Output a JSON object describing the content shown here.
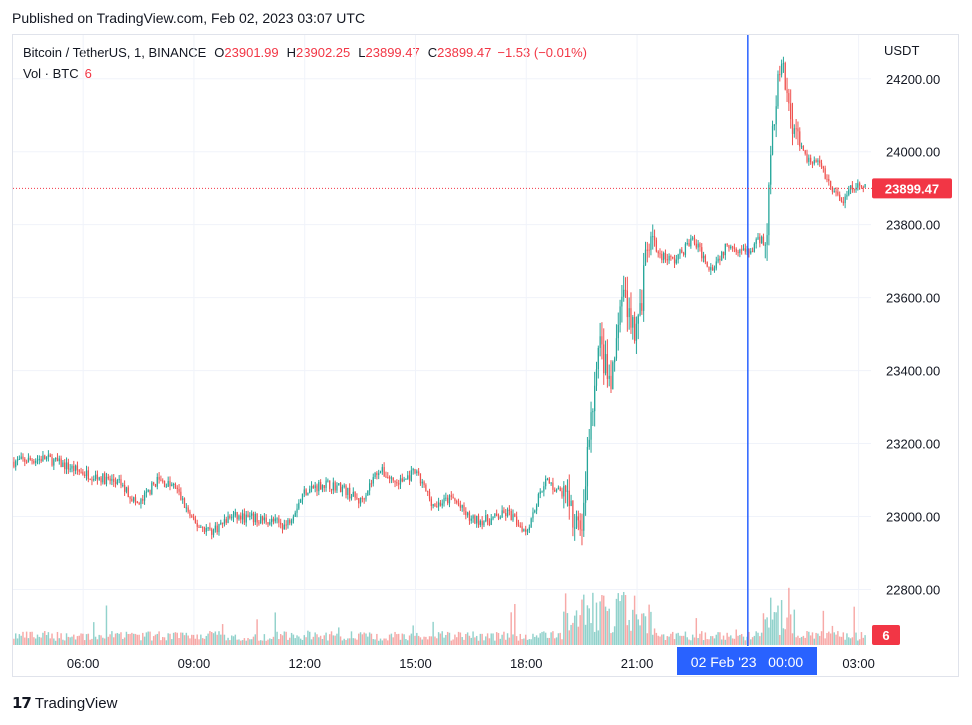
{
  "published": "Published on TradingView.com, Feb 02, 2023 03:07 UTC",
  "legend": {
    "symbol": "Bitcoin / TetherUS, 1, BINANCE",
    "open_label": "O",
    "open": "23901.99",
    "high_label": "H",
    "high": "23902.25",
    "low_label": "L",
    "low": "23899.47",
    "close_label": "C",
    "close": "23899.47",
    "change": "−1.53 (−0.01%)",
    "volume_label": "Vol · BTC",
    "volume": "6"
  },
  "currency": "USDT",
  "price_badge": "23899.47",
  "volume_badge": "6",
  "crosshair_label": "02 Feb '23   00:00",
  "footer": {
    "logo_mark": "17",
    "logo_text": "TradingView"
  },
  "colors": {
    "up": "#26a69a",
    "down": "#ef5350",
    "crosshair": "#2962ff",
    "price_line": "#f23645"
  },
  "chart_data": {
    "type": "candlestick",
    "symbol": "BTCUSDT",
    "interval": "1m",
    "y_axis_ticks": [
      "22800.00",
      "23000.00",
      "23200.00",
      "23400.00",
      "23600.00",
      "23800.00",
      "24000.00",
      "24200.00"
    ],
    "x_axis_ticks": [
      "06:00",
      "09:00",
      "12:00",
      "15:00",
      "18:00",
      "21:00",
      "03:00"
    ],
    "ylim": [
      22645,
      24320
    ],
    "xlim_hours": [
      4.1,
      27.2
    ],
    "last_price": 23899.47,
    "price_path": [
      {
        "t": 4.1,
        "p": 23150
      },
      {
        "t": 5.0,
        "p": 23160
      },
      {
        "t": 6.0,
        "p": 23120
      },
      {
        "t": 7.0,
        "p": 23090
      },
      {
        "t": 7.5,
        "p": 23030
      },
      {
        "t": 8.0,
        "p": 23100
      },
      {
        "t": 8.5,
        "p": 23080
      },
      {
        "t": 9.0,
        "p": 22980
      },
      {
        "t": 9.5,
        "p": 22960
      },
      {
        "t": 10.0,
        "p": 23000
      },
      {
        "t": 11.0,
        "p": 22990
      },
      {
        "t": 11.5,
        "p": 22975
      },
      {
        "t": 12.0,
        "p": 23070
      },
      {
        "t": 12.5,
        "p": 23090
      },
      {
        "t": 13.0,
        "p": 23080
      },
      {
        "t": 13.5,
        "p": 23040
      },
      {
        "t": 14.0,
        "p": 23130
      },
      {
        "t": 14.5,
        "p": 23090
      },
      {
        "t": 15.0,
        "p": 23120
      },
      {
        "t": 15.5,
        "p": 23030
      },
      {
        "t": 16.0,
        "p": 23050
      },
      {
        "t": 16.5,
        "p": 22990
      },
      {
        "t": 17.0,
        "p": 22990
      },
      {
        "t": 17.5,
        "p": 23010
      },
      {
        "t": 18.0,
        "p": 22960
      },
      {
        "t": 18.5,
        "p": 23100
      },
      {
        "t": 19.0,
        "p": 23060
      },
      {
        "t": 19.3,
        "p": 22980
      },
      {
        "t": 19.5,
        "p": 22950
      },
      {
        "t": 19.7,
        "p": 23220
      },
      {
        "t": 20.0,
        "p": 23470
      },
      {
        "t": 20.3,
        "p": 23350
      },
      {
        "t": 20.6,
        "p": 23620
      },
      {
        "t": 21.0,
        "p": 23500
      },
      {
        "t": 21.3,
        "p": 23750
      },
      {
        "t": 21.6,
        "p": 23720
      },
      {
        "t": 22.0,
        "p": 23700
      },
      {
        "t": 22.5,
        "p": 23760
      },
      {
        "t": 23.0,
        "p": 23680
      },
      {
        "t": 23.5,
        "p": 23750
      },
      {
        "t": 24.0,
        "p": 23720
      },
      {
        "t": 24.5,
        "p": 23780
      },
      {
        "t": 24.7,
        "p": 24100
      },
      {
        "t": 24.9,
        "p": 24230
      },
      {
        "t": 25.2,
        "p": 24090
      },
      {
        "t": 25.5,
        "p": 23990
      },
      {
        "t": 26.0,
        "p": 23960
      },
      {
        "t": 26.3,
        "p": 23890
      },
      {
        "t": 26.6,
        "p": 23860
      },
      {
        "t": 26.8,
        "p": 23900
      },
      {
        "t": 27.1,
        "p": 23899.47
      }
    ],
    "crosshair_time_hours": 24.0
  }
}
